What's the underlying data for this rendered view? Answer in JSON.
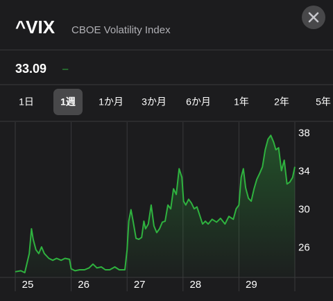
{
  "header": {
    "symbol": "^VIX",
    "name": "CBOE Volatility Index"
  },
  "quote": {
    "price": "33.09",
    "change": "–"
  },
  "tabs": [
    "1日",
    "1週",
    "1か月",
    "3か月",
    "6か月",
    "1年",
    "2年",
    "5年"
  ],
  "selected_tab": 1,
  "chart_data": {
    "type": "line",
    "color": "#2fb23f",
    "x": [
      25.0,
      25.1,
      25.17,
      25.25,
      25.29,
      25.32,
      25.37,
      25.42,
      25.47,
      25.52,
      25.6,
      25.67,
      25.74,
      25.82,
      25.89,
      25.97,
      26.0,
      26.07,
      26.15,
      26.24,
      26.32,
      26.39,
      26.46,
      26.54,
      26.61,
      26.69,
      26.78,
      26.86,
      26.96,
      27.0,
      27.03,
      27.07,
      27.11,
      27.16,
      27.21,
      27.26,
      27.3,
      27.33,
      27.38,
      27.43,
      27.48,
      27.53,
      27.58,
      27.63,
      27.68,
      27.73,
      27.78,
      27.83,
      27.88,
      27.93,
      27.98,
      28.01,
      28.05,
      28.1,
      28.15,
      28.2,
      28.25,
      28.3,
      28.35,
      28.4,
      28.45,
      28.52,
      28.6,
      28.67,
      28.75,
      28.82,
      28.9,
      28.95,
      29.0,
      29.04,
      29.08,
      29.12,
      29.17,
      29.22,
      29.27,
      29.32,
      29.37,
      29.42,
      29.47,
      29.52,
      29.57,
      29.62,
      29.66,
      29.71,
      29.76,
      29.81,
      29.86,
      29.91,
      29.96,
      30.0
    ],
    "values": [
      23.5,
      23.6,
      23.4,
      25.4,
      28.0,
      26.9,
      25.8,
      25.4,
      26.1,
      25.4,
      24.9,
      24.7,
      24.9,
      24.7,
      24.9,
      24.8,
      23.8,
      23.6,
      23.7,
      23.7,
      23.9,
      24.3,
      23.9,
      24.0,
      23.7,
      23.7,
      24.0,
      23.7,
      23.7,
      25.8,
      28.8,
      30.0,
      28.7,
      27.0,
      26.9,
      27.1,
      28.8,
      28.0,
      28.5,
      30.5,
      28.3,
      27.6,
      28.0,
      28.7,
      28.8,
      30.5,
      30.1,
      32.2,
      31.6,
      34.3,
      33.4,
      30.9,
      30.5,
      31.1,
      30.7,
      30.1,
      30.3,
      29.4,
      28.5,
      28.8,
      28.5,
      29.0,
      28.7,
      29.1,
      28.5,
      29.3,
      29.0,
      30.1,
      30.5,
      33.4,
      34.3,
      32.3,
      31.2,
      30.9,
      32.2,
      33.2,
      33.8,
      34.5,
      36.3,
      37.4,
      37.8,
      37.1,
      36.3,
      36.5,
      34.1,
      35.2,
      32.7,
      32.9,
      33.4,
      34.5
    ],
    "xlim": [
      25,
      30
    ],
    "xticks": [
      25,
      26,
      27,
      28,
      29
    ],
    "ylim": [
      22.9,
      39.2
    ],
    "yticks": [
      26,
      30,
      34,
      38
    ],
    "grid": true
  }
}
